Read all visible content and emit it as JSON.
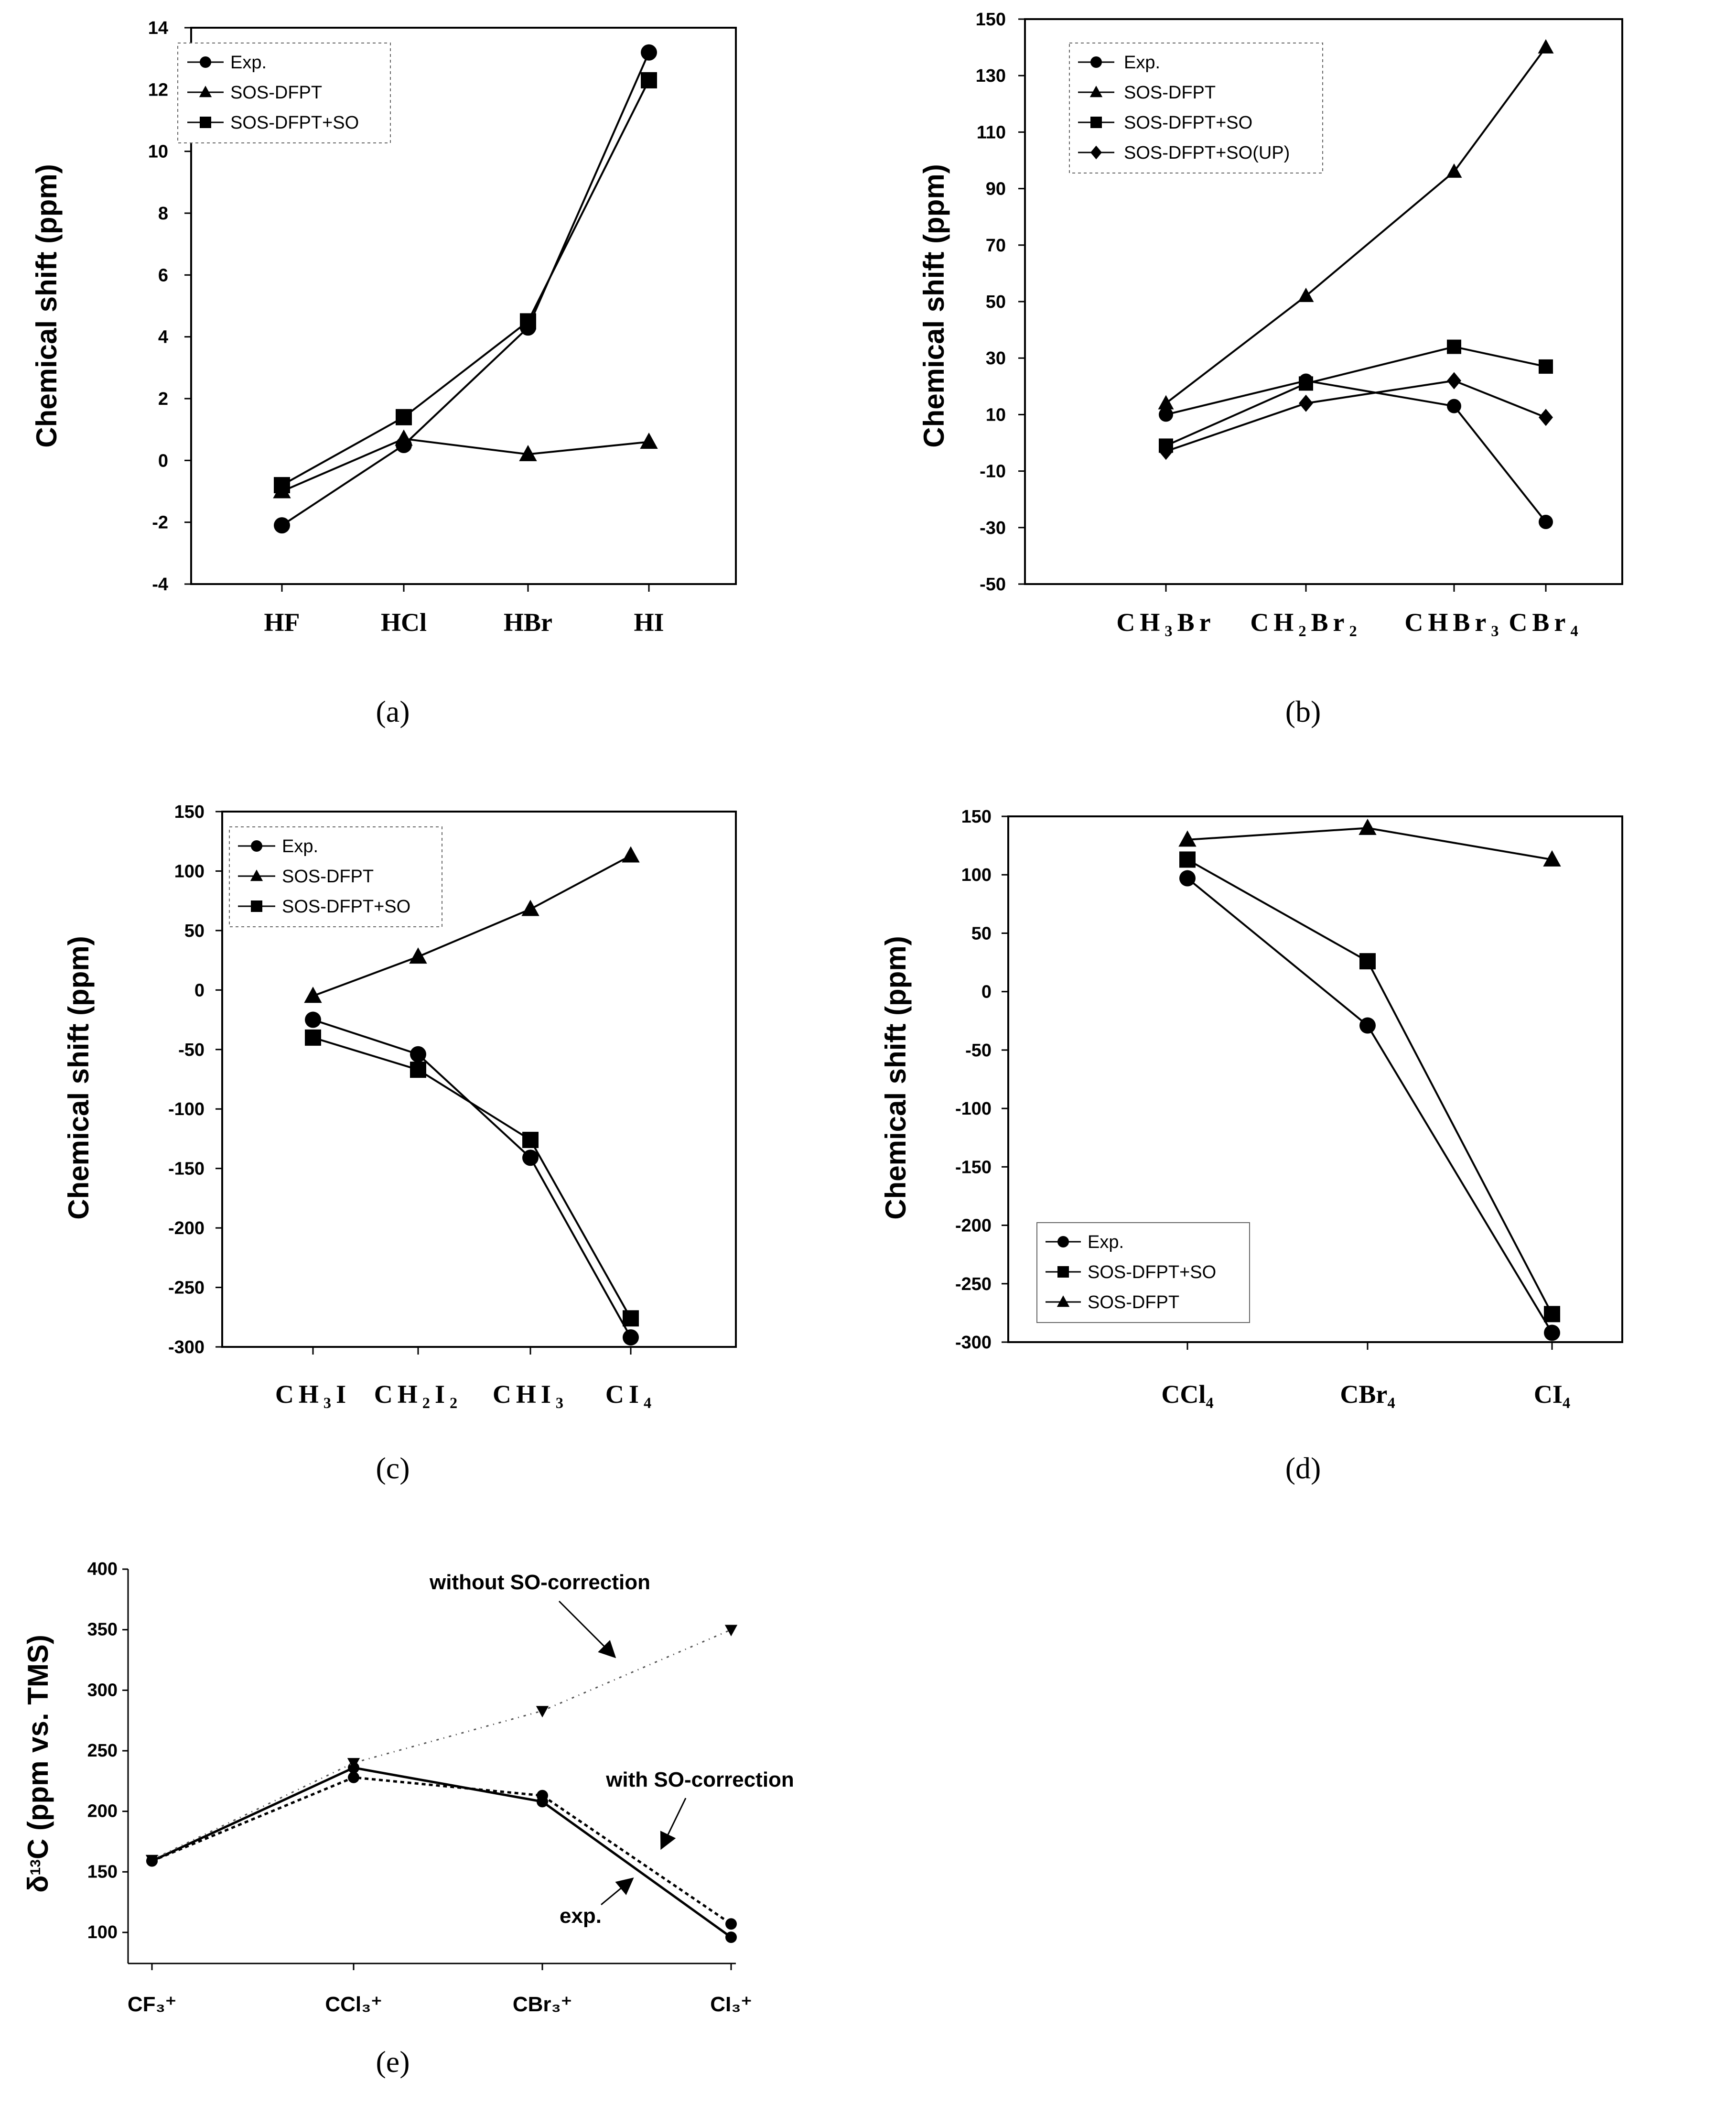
{
  "captions": [
    "(a)",
    "(b)",
    "(c)",
    "(d)",
    "(e)"
  ],
  "chart_data": [
    {
      "panel": "(a)",
      "type": "line",
      "ylabel": "Chemical shift (ppm)",
      "xlabel": "",
      "ylim": [
        -4,
        14
      ],
      "yticks": [
        -4,
        -2,
        0,
        2,
        4,
        6,
        8,
        10,
        12,
        14
      ],
      "ytick_labels": [
        "-4",
        "-2",
        "0",
        "2",
        "4",
        "6",
        "8",
        "10",
        "12",
        "14"
      ],
      "categories": [
        "HF",
        "HCl",
        "HBr",
        "HI"
      ],
      "legend_position": "top-left",
      "series": [
        {
          "name": "Exp.",
          "marker": "circle",
          "values": [
            -2.1,
            0.5,
            4.3,
            13.2
          ]
        },
        {
          "name": "SOS-DFPT",
          "marker": "triangle",
          "values": [
            -1.0,
            0.7,
            0.2,
            0.6
          ]
        },
        {
          "name": "SOS-DFPT+SO",
          "marker": "square",
          "values": [
            -0.8,
            1.4,
            4.5,
            12.3
          ]
        }
      ]
    },
    {
      "panel": "(b)",
      "type": "line",
      "ylabel": "Chemical shift (ppm)",
      "xlabel": "",
      "ylim": [
        -50,
        150
      ],
      "yticks": [
        -50,
        -30,
        -10,
        10,
        30,
        50,
        70,
        90,
        110,
        130,
        150
      ],
      "ytick_labels": [
        "-50",
        "-30",
        "-10",
        "10",
        "30",
        "50",
        "70",
        "90",
        "110",
        "130",
        "150"
      ],
      "categories": [
        "CH₃Br",
        "CH₂Br₂",
        "CHBr₃",
        "CBr₄"
      ],
      "legend_position": "top-left",
      "series": [
        {
          "name": "Exp.",
          "marker": "circle",
          "values": [
            10,
            22,
            13,
            -28
          ]
        },
        {
          "name": "SOS-DFPT",
          "marker": "triangle",
          "values": [
            14,
            52,
            96,
            140
          ]
        },
        {
          "name": "SOS-DFPT+SO",
          "marker": "square",
          "values": [
            -1,
            21,
            34,
            27
          ]
        },
        {
          "name": "SOS-DFPT+SO(UP)",
          "marker": "diamond",
          "values": [
            -3,
            14,
            22,
            9
          ]
        }
      ]
    },
    {
      "panel": "(c)",
      "type": "line",
      "ylabel": "Chemical shift (ppm)",
      "xlabel": "",
      "ylim": [
        -300,
        150
      ],
      "yticks": [
        -300,
        -250,
        -200,
        -150,
        -100,
        -50,
        0,
        50,
        100,
        150
      ],
      "ytick_labels": [
        "-300",
        "-250",
        "-200",
        "-150",
        "-100",
        "-50",
        "0",
        "50",
        "100",
        "150"
      ],
      "categories": [
        "CH₃I",
        "CH₂I₂",
        "CHI₃",
        "CI₄"
      ],
      "legend_position": "top-left",
      "series": [
        {
          "name": "Exp.",
          "marker": "circle",
          "values": [
            -25,
            -54,
            -141,
            -292
          ]
        },
        {
          "name": "SOS-DFPT",
          "marker": "triangle",
          "values": [
            -5,
            28,
            68,
            113
          ]
        },
        {
          "name": "SOS-DFPT+SO",
          "marker": "square",
          "values": [
            -40,
            -67,
            -126,
            -276
          ]
        }
      ]
    },
    {
      "panel": "(d)",
      "type": "line",
      "ylabel": "Chemical shift (ppm)",
      "xlabel": "",
      "ylim": [
        -300,
        150
      ],
      "yticks": [
        -300,
        -250,
        -200,
        -150,
        -100,
        -50,
        0,
        50,
        100,
        150
      ],
      "ytick_labels": [
        "-300",
        "-250",
        "-200",
        "-150",
        "-100",
        "-50",
        "0",
        "50",
        "100",
        "150"
      ],
      "categories": [
        "CCl₄",
        "CBr₄",
        "CI₄"
      ],
      "legend_position": "bottom-left",
      "series": [
        {
          "name": "Exp.",
          "marker": "circle",
          "values": [
            97,
            -29,
            -292
          ]
        },
        {
          "name": "SOS-DFPT+SO",
          "marker": "square",
          "values": [
            113,
            26,
            -276
          ]
        },
        {
          "name": "SOS-DFPT",
          "marker": "triangle",
          "values": [
            130,
            140,
            113
          ]
        }
      ]
    },
    {
      "panel": "(e)",
      "type": "line",
      "ylabel": "δ13C (ppm vs. TMS)",
      "ylabel_parts": [
        "δ",
        "13",
        "C (ppm vs. TMS)"
      ],
      "xlabel": "",
      "ylim": [
        85,
        400
      ],
      "yticks": [
        100,
        150,
        200,
        250,
        300,
        350,
        400
      ],
      "ytick_labels": [
        "100",
        "150",
        "200",
        "250",
        "300",
        "350",
        "400"
      ],
      "categories": [
        "CF₃⁺",
        "CCl₃⁺",
        "CBr₃⁺",
        "CI₃⁺"
      ],
      "annotations": [
        "without SO-correction",
        "with SO-correction",
        "exp."
      ],
      "series": [
        {
          "name": "exp.",
          "marker": "circle",
          "values": [
            159,
            236,
            208,
            96
          ]
        },
        {
          "name": "with SO-correction",
          "marker": "circle",
          "values": [
            159,
            228,
            213,
            107
          ]
        },
        {
          "name": "without SO-correction",
          "marker": "triangle-down",
          "values": [
            160,
            240,
            283,
            350
          ]
        }
      ]
    }
  ]
}
